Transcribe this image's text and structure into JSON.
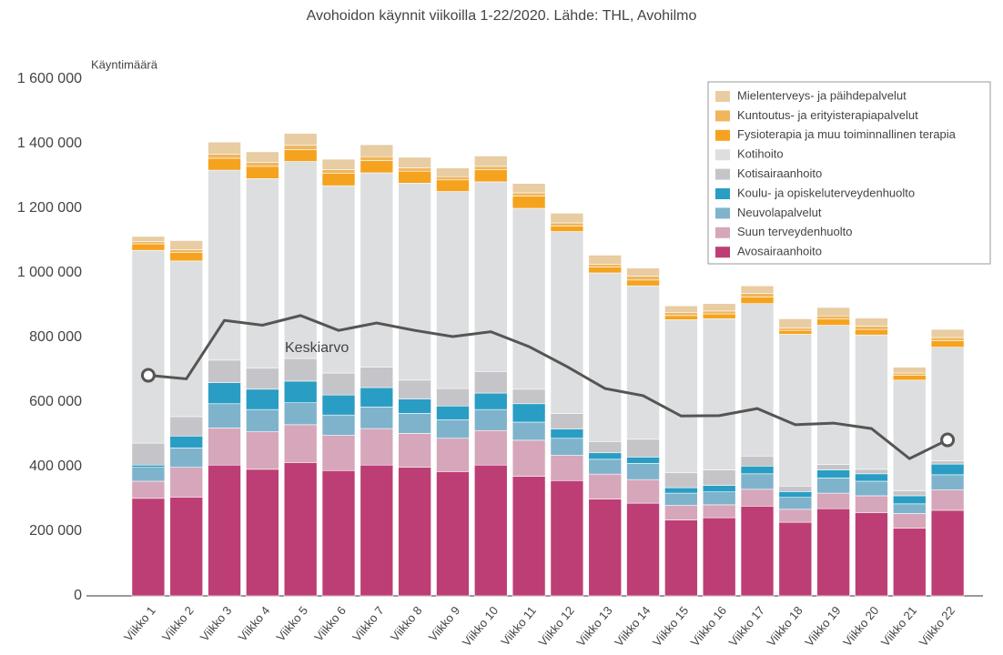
{
  "chart_data": {
    "type": "stacked_bar",
    "title": "Avohoidon käynnit viikoilla 1-22/2020. Lähde: THL, Avohilmo",
    "y_label": "Käyntimäärä",
    "categories": [
      "Viikko 1",
      "Viikko 2",
      "Viikko 3",
      "Viikko 4",
      "Viikko 5",
      "Viikko 6",
      "Viikko 7",
      "Viikko 8",
      "Viikko 9",
      "Viikko 10",
      "Viikko 11",
      "Viikko 12",
      "Viikko 13",
      "Viikko 14",
      "Viikko 15",
      "Viikko 16",
      "Viikko 17",
      "Viikko 18",
      "Viikko 19",
      "Viikko 20",
      "Viikko 21",
      "Viikko 22"
    ],
    "series": [
      {
        "name": "Avosairaanhoito",
        "color": "#bd3e74",
        "values": [
          302000,
          306000,
          405000,
          392000,
          413000,
          388000,
          405000,
          398000,
          385000,
          405000,
          370000,
          357000,
          300000,
          287000,
          235000,
          242000,
          278000,
          228000,
          270000,
          258000,
          210000,
          265000
        ]
      },
      {
        "name": "Suun terveydenhuolto",
        "color": "#d6a6ba",
        "values": [
          53000,
          92000,
          115000,
          116000,
          117000,
          109000,
          113000,
          105000,
          103000,
          107000,
          112000,
          78000,
          77000,
          73000,
          45000,
          40000,
          52000,
          40000,
          48000,
          52000,
          45000,
          63000
        ]
      },
      {
        "name": "Neuvolapalvelut",
        "color": "#7fb3cc",
        "values": [
          43000,
          60000,
          75000,
          69000,
          68000,
          63000,
          67000,
          62000,
          57000,
          65000,
          56000,
          53000,
          46000,
          50000,
          38000,
          40000,
          48000,
          37000,
          47000,
          45000,
          30000,
          47000
        ]
      },
      {
        "name": "Koulu- ja opiskeluterveydenhuolto",
        "color": "#2a9dc4",
        "values": [
          7000,
          37000,
          65000,
          63000,
          67000,
          62000,
          60000,
          45000,
          43000,
          51000,
          57000,
          29000,
          20000,
          20000,
          17000,
          20000,
          24000,
          18000,
          25000,
          23000,
          25000,
          33000
        ]
      },
      {
        "name": "Kotisairaanhoito",
        "color": "#c5c5c9",
        "values": [
          68000,
          60000,
          70000,
          65000,
          70000,
          68000,
          63000,
          58000,
          54000,
          67000,
          45000,
          48000,
          35000,
          55000,
          47000,
          48000,
          31000,
          17000,
          17000,
          14000,
          15000,
          10000
        ]
      },
      {
        "name": "Kotihoito",
        "color": "#dcdee0",
        "values": [
          597000,
          482000,
          588000,
          587000,
          610000,
          580000,
          602000,
          610000,
          610000,
          587000,
          560000,
          563000,
          522000,
          475000,
          473000,
          468000,
          472000,
          470000,
          431000,
          416000,
          343000,
          352000
        ]
      },
      {
        "name": "Fysioterapia ja muu toiminnallinen terapia",
        "color": "#f5a31e",
        "values": [
          20000,
          26000,
          37000,
          38000,
          37000,
          38000,
          38000,
          37000,
          36000,
          38000,
          38000,
          17000,
          18000,
          18000,
          13000,
          15000,
          20000,
          12000,
          19000,
          17000,
          15000,
          20000
        ]
      },
      {
        "name": "Kuntoutus- ja erityisterapiapalvelut",
        "color": "#efb65c",
        "values": [
          7000,
          9000,
          13000,
          12000,
          13000,
          12000,
          12000,
          10000,
          10000,
          10000,
          10000,
          10000,
          9000,
          12000,
          9000,
          9000,
          12000,
          8000,
          10000,
          10000,
          7000,
          10000
        ]
      },
      {
        "name": "Mielenterveys- ja päihdepalvelut",
        "color": "#e8cca2",
        "values": [
          16000,
          28000,
          37000,
          33000,
          37000,
          32000,
          37000,
          33000,
          27000,
          32000,
          29000,
          30000,
          28000,
          25000,
          21000,
          23000,
          23000,
          28000,
          26000,
          25000,
          18000,
          25000
        ]
      }
    ],
    "line": {
      "name": "Keskiarvo",
      "color": "#555555",
      "values": [
        683000,
        672000,
        853000,
        838000,
        868000,
        822000,
        845000,
        822000,
        803000,
        818000,
        772000,
        710000,
        642000,
        620000,
        557000,
        558000,
        580000,
        530000,
        535000,
        518000,
        425000,
        483000
      ]
    },
    "ylim": [
      0,
      1600000
    ],
    "yticks": [
      0,
      {
        "value": 200000,
        "label": "200 000"
      },
      {
        "value": 400000,
        "label": "400 000"
      },
      {
        "value": 600000,
        "label": "600 000"
      },
      {
        "value": 800000,
        "label": "800 000"
      },
      {
        "value": 1000000,
        "label": "1 000 000"
      },
      {
        "value": 1200000,
        "label": "1 200 000"
      },
      {
        "value": 1400000,
        "label": "1 400 000"
      },
      {
        "value": 1600000,
        "label": "1 600 000"
      }
    ],
    "grid": false,
    "legend": "top-right"
  }
}
